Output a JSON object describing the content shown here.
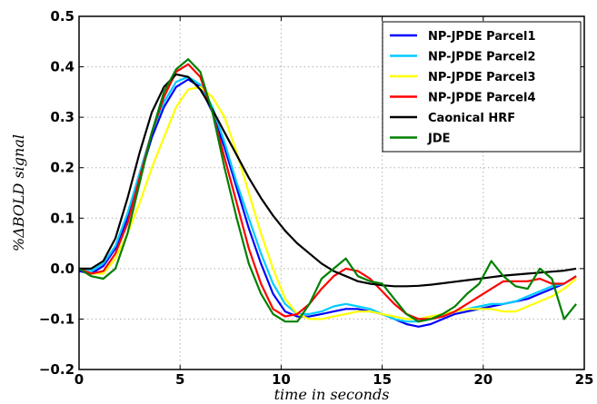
{
  "chart_data": {
    "type": "line",
    "xlabel": "time in seconds",
    "ylabel": "%ΔBOLD signal",
    "xlim": [
      0,
      25
    ],
    "ylim": [
      -0.2,
      0.5
    ],
    "xticks": [
      0,
      5,
      10,
      15,
      20,
      25
    ],
    "yticks": [
      -0.2,
      -0.1,
      0.0,
      0.1,
      0.2,
      0.3,
      0.4,
      0.5
    ],
    "xtick_labels": [
      "0",
      "5",
      "10",
      "15",
      "20",
      "25"
    ],
    "ytick_labels": [
      "−0.2",
      "−0.1",
      "0.0",
      "0.1",
      "0.2",
      "0.3",
      "0.4",
      "0.5"
    ],
    "grid": true,
    "legend_position": "top-right",
    "series": [
      {
        "name": "NP-JPDE Parcel1",
        "color": "#0000ff",
        "x": [
          0,
          0.6,
          1.2,
          1.8,
          2.4,
          3.0,
          3.6,
          4.2,
          4.8,
          5.4,
          6.0,
          6.6,
          7.2,
          7.8,
          8.4,
          9.0,
          9.6,
          10.2,
          10.8,
          11.4,
          12.0,
          12.6,
          13.2,
          13.8,
          14.4,
          15.0,
          15.6,
          16.2,
          16.8,
          17.4,
          18.0,
          18.6,
          19.2,
          19.8,
          20.4,
          21.0,
          21.6,
          22.2,
          22.8,
          23.4,
          24.0,
          24.6
        ],
        "y": [
          -0.005,
          -0.01,
          0.005,
          0.04,
          0.1,
          0.18,
          0.26,
          0.32,
          0.36,
          0.375,
          0.36,
          0.31,
          0.24,
          0.16,
          0.08,
          0.01,
          -0.05,
          -0.085,
          -0.095,
          -0.095,
          -0.09,
          -0.085,
          -0.08,
          -0.08,
          -0.085,
          -0.09,
          -0.1,
          -0.11,
          -0.115,
          -0.11,
          -0.1,
          -0.09,
          -0.085,
          -0.08,
          -0.075,
          -0.07,
          -0.065,
          -0.06,
          -0.05,
          -0.04,
          -0.03,
          -0.015
        ]
      },
      {
        "name": "NP-JPDE Parcel2",
        "color": "#00ccff",
        "x": [
          0,
          0.6,
          1.2,
          1.8,
          2.4,
          3.0,
          3.6,
          4.2,
          4.8,
          5.4,
          6.0,
          6.6,
          7.2,
          7.8,
          8.4,
          9.0,
          9.6,
          10.2,
          10.8,
          11.4,
          12.0,
          12.6,
          13.2,
          13.8,
          14.4,
          15.0,
          15.6,
          16.2,
          16.8,
          17.4,
          18.0,
          18.6,
          19.2,
          19.8,
          20.4,
          21.0,
          21.6,
          22.2,
          22.8,
          23.4,
          24.0,
          24.6
        ],
        "y": [
          0.0,
          -0.005,
          0.01,
          0.045,
          0.11,
          0.19,
          0.27,
          0.33,
          0.37,
          0.38,
          0.365,
          0.32,
          0.25,
          0.17,
          0.1,
          0.03,
          -0.03,
          -0.07,
          -0.09,
          -0.09,
          -0.085,
          -0.075,
          -0.07,
          -0.075,
          -0.08,
          -0.09,
          -0.1,
          -0.105,
          -0.105,
          -0.1,
          -0.095,
          -0.085,
          -0.08,
          -0.075,
          -0.07,
          -0.07,
          -0.065,
          -0.055,
          -0.045,
          -0.035,
          -0.03,
          -0.015
        ]
      },
      {
        "name": "NP-JPDE Parcel3",
        "color": "#ffff00",
        "x": [
          0,
          0.6,
          1.2,
          1.8,
          2.4,
          3.0,
          3.6,
          4.2,
          4.8,
          5.4,
          6.0,
          6.6,
          7.2,
          7.8,
          8.4,
          9.0,
          9.6,
          10.2,
          10.8,
          11.4,
          12.0,
          12.6,
          13.2,
          13.8,
          14.4,
          15.0,
          15.6,
          16.2,
          16.8,
          17.4,
          18.0,
          18.6,
          19.2,
          19.8,
          20.4,
          21.0,
          21.6,
          22.2,
          22.8,
          23.4,
          24.0,
          24.6
        ],
        "y": [
          0.0,
          -0.01,
          -0.01,
          0.02,
          0.07,
          0.13,
          0.2,
          0.26,
          0.32,
          0.355,
          0.36,
          0.34,
          0.3,
          0.23,
          0.15,
          0.07,
          0.0,
          -0.06,
          -0.09,
          -0.1,
          -0.1,
          -0.095,
          -0.09,
          -0.085,
          -0.085,
          -0.09,
          -0.095,
          -0.1,
          -0.1,
          -0.095,
          -0.09,
          -0.085,
          -0.08,
          -0.08,
          -0.08,
          -0.085,
          -0.085,
          -0.075,
          -0.065,
          -0.055,
          -0.04,
          -0.02
        ]
      },
      {
        "name": "NP-JPDE Parcel4",
        "color": "#ff0000",
        "x": [
          0,
          0.6,
          1.2,
          1.8,
          2.4,
          3.0,
          3.6,
          4.2,
          4.8,
          5.4,
          6.0,
          6.6,
          7.2,
          7.8,
          8.4,
          9.0,
          9.6,
          10.2,
          10.8,
          11.4,
          12.0,
          12.6,
          13.2,
          13.8,
          14.4,
          15.0,
          15.6,
          16.2,
          16.8,
          17.4,
          18.0,
          18.6,
          19.2,
          19.8,
          20.4,
          21.0,
          21.6,
          22.2,
          22.8,
          23.4,
          24.0,
          24.6
        ],
        "y": [
          0.0,
          -0.01,
          -0.005,
          0.03,
          0.09,
          0.18,
          0.27,
          0.34,
          0.39,
          0.405,
          0.38,
          0.31,
          0.22,
          0.13,
          0.04,
          -0.03,
          -0.08,
          -0.095,
          -0.09,
          -0.07,
          -0.04,
          -0.015,
          0.0,
          -0.005,
          -0.02,
          -0.045,
          -0.07,
          -0.09,
          -0.1,
          -0.1,
          -0.095,
          -0.085,
          -0.07,
          -0.055,
          -0.04,
          -0.025,
          -0.025,
          -0.025,
          -0.02,
          -0.03,
          -0.03,
          -0.015
        ]
      },
      {
        "name": "Caonical HRF",
        "color": "#000000",
        "x": [
          0,
          0.6,
          1.2,
          1.8,
          2.4,
          3.0,
          3.6,
          4.2,
          4.8,
          5.4,
          6.0,
          6.6,
          7.2,
          7.8,
          8.4,
          9.0,
          9.6,
          10.2,
          10.8,
          11.4,
          12.0,
          12.6,
          13.2,
          13.8,
          14.4,
          15.0,
          15.6,
          16.2,
          16.8,
          17.4,
          18.0,
          18.6,
          19.2,
          19.8,
          20.4,
          21.0,
          21.6,
          22.2,
          22.8,
          23.4,
          24.0,
          24.6
        ],
        "y": [
          0.0,
          0.0,
          0.015,
          0.06,
          0.14,
          0.23,
          0.31,
          0.36,
          0.385,
          0.38,
          0.355,
          0.315,
          0.27,
          0.225,
          0.18,
          0.14,
          0.105,
          0.075,
          0.05,
          0.03,
          0.01,
          -0.005,
          -0.015,
          -0.025,
          -0.03,
          -0.033,
          -0.035,
          -0.035,
          -0.034,
          -0.032,
          -0.029,
          -0.026,
          -0.023,
          -0.02,
          -0.017,
          -0.014,
          -0.012,
          -0.01,
          -0.008,
          -0.006,
          -0.004,
          0.0
        ]
      },
      {
        "name": "JDE",
        "color": "#008000",
        "x": [
          0,
          0.6,
          1.2,
          1.8,
          2.4,
          3.0,
          3.6,
          4.2,
          4.8,
          5.4,
          6.0,
          6.6,
          7.2,
          7.8,
          8.4,
          9.0,
          9.6,
          10.2,
          10.8,
          11.4,
          12.0,
          12.6,
          13.2,
          13.8,
          14.4,
          15.0,
          15.6,
          16.2,
          16.8,
          17.4,
          18.0,
          18.6,
          19.2,
          19.8,
          20.4,
          21.0,
          21.6,
          22.2,
          22.8,
          23.4,
          24.0,
          24.6
        ],
        "y": [
          0.0,
          -0.015,
          -0.02,
          0.0,
          0.07,
          0.17,
          0.27,
          0.35,
          0.395,
          0.415,
          0.39,
          0.31,
          0.2,
          0.1,
          0.01,
          -0.05,
          -0.09,
          -0.105,
          -0.105,
          -0.07,
          -0.02,
          0.0,
          0.02,
          -0.015,
          -0.025,
          -0.03,
          -0.06,
          -0.09,
          -0.105,
          -0.1,
          -0.09,
          -0.075,
          -0.05,
          -0.03,
          0.015,
          -0.015,
          -0.035,
          -0.04,
          0.0,
          -0.02,
          -0.1,
          -0.07
        ]
      }
    ]
  }
}
